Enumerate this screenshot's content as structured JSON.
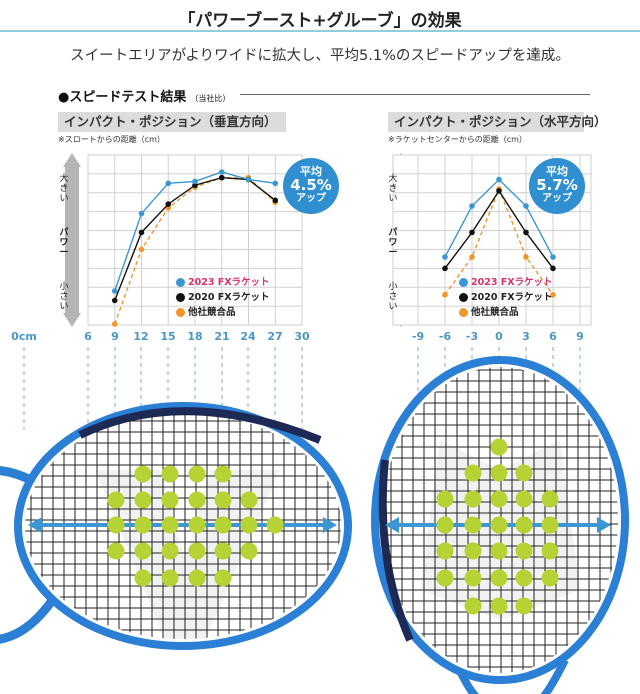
{
  "header": {
    "title": "「パワーブースト+グルーブ」の効果",
    "lead": "スイートエリアがよりワイドに拡大し、平均5.1%のスピードアップを達成。"
  },
  "section": {
    "title": "●スピードテスト結果",
    "note": "（当社比）"
  },
  "y_axis": {
    "label": "パワー",
    "top": "大きい",
    "bottom": "小さい"
  },
  "legend": {
    "items": [
      {
        "label": "2023 FXラケット",
        "color": "#3a97d4",
        "text_color": "#d6336c"
      },
      {
        "label": "2020 FXラケット",
        "color": "#111111",
        "text_color": "#111111"
      },
      {
        "label": "他社競合品",
        "color": "#f0962a",
        "text_color": "#111111"
      }
    ]
  },
  "scale_labels": {
    "left": [
      "0cm",
      "6",
      "9",
      "12",
      "15",
      "18",
      "21",
      "24",
      "27",
      "30"
    ],
    "right": [
      "-9",
      "-6",
      "-3",
      "0",
      "3",
      "6",
      "9"
    ]
  },
  "colors": {
    "accent_blue": "#3a97d4",
    "badge_blue": "#2f8fd0",
    "tick_blue": "#4a96c7",
    "black": "#111111",
    "orange": "#f0962a",
    "ball": "#b5d334",
    "frame_blue": "#2b7fd4",
    "frame_dark": "#1c2a55"
  },
  "chart_data": [
    {
      "type": "line",
      "title": "インパクト・ポジション（垂直方向）",
      "subtitle": "※スロートからの距離（cm）",
      "xlabel": "スロートからの距離（cm）",
      "ylabel": "パワー",
      "x": [
        9,
        12,
        15,
        18,
        21,
        24,
        27
      ],
      "x_ticks": [
        6,
        9,
        12,
        15,
        18,
        21,
        24,
        27,
        30
      ],
      "xlim": [
        6,
        30
      ],
      "ylim": [
        0,
        9
      ],
      "grid": true,
      "series": [
        {
          "name": "2023 FXラケット",
          "values": [
            1.8,
            5.9,
            7.5,
            7.6,
            8.1,
            7.7,
            7.5
          ],
          "style": "solid"
        },
        {
          "name": "2020 FXラケット",
          "values": [
            1.3,
            4.9,
            6.4,
            7.4,
            7.8,
            7.7,
            6.6
          ],
          "style": "solid"
        },
        {
          "name": "他社競合品",
          "values": [
            0.05,
            4.0,
            6.2,
            7.3,
            7.8,
            7.8,
            6.5
          ],
          "style": "dashed"
        }
      ],
      "annotation": {
        "line1": "平均",
        "line2": "4.5%",
        "line3": "アップ"
      }
    },
    {
      "type": "line",
      "title": "インパクト・ポジション（水平方向）",
      "subtitle": "※ラケットセンターからの距離（cm）",
      "xlabel": "ラケットセンターからの距離（cm）",
      "ylabel": "パワー",
      "x": [
        -6,
        -3,
        0,
        3,
        6
      ],
      "x_ticks": [
        -9,
        -6,
        -3,
        0,
        3,
        6,
        9
      ],
      "xlim": [
        -9,
        9
      ],
      "ylim": [
        0,
        9
      ],
      "grid": true,
      "series": [
        {
          "name": "2023 FXラケット",
          "values": [
            3.6,
            6.3,
            7.7,
            6.3,
            3.6
          ],
          "style": "solid"
        },
        {
          "name": "2020 FXラケット",
          "values": [
            3.0,
            4.9,
            7.1,
            4.9,
            3.0
          ],
          "style": "solid"
        },
        {
          "name": "他社競合品",
          "values": [
            1.6,
            3.6,
            7.2,
            3.6,
            1.6
          ],
          "style": "dashed"
        }
      ],
      "annotation": {
        "line1": "平均",
        "line2": "5.7%",
        "line3": "アップ"
      }
    }
  ]
}
